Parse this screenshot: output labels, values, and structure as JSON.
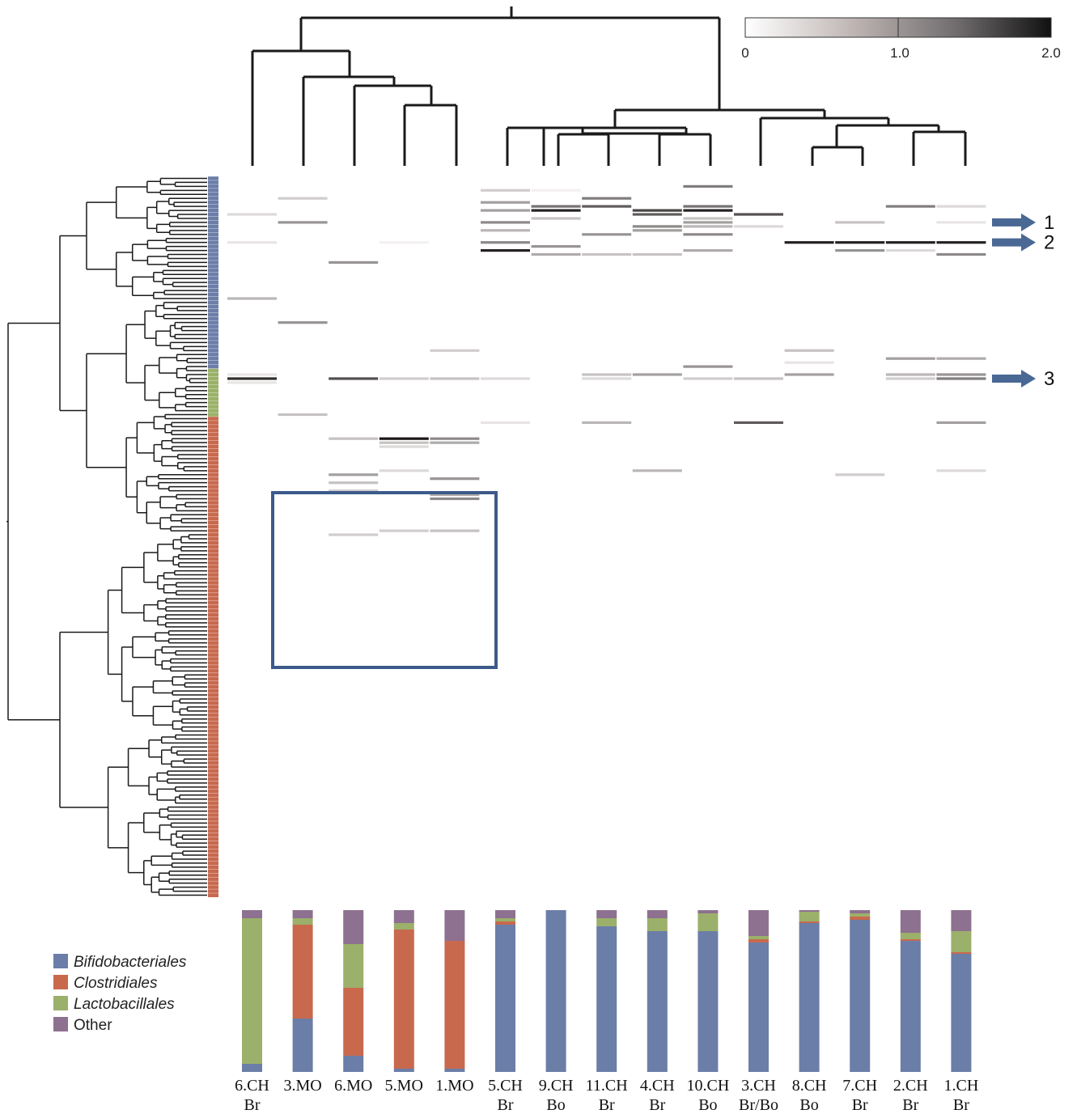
{
  "chart_data": [
    {
      "type": "heatmap",
      "samples": [
        "6.CH Br",
        "3.MO",
        "6.MO",
        "5.MO",
        "1.MO",
        "5.CH Br",
        "9.CH Bo",
        "11.CH Br",
        "4.CH Br",
        "10.CH Bo",
        "3.CH Br/Bo",
        "8.CH Bo",
        "7.CH Br",
        "2.CH Br",
        "1.CH Br"
      ],
      "sample_lines": [
        [
          "6.CH",
          "Br"
        ],
        [
          "3.MO"
        ],
        [
          "6.MO"
        ],
        [
          "5.MO"
        ],
        [
          "1.MO"
        ],
        [
          "5.CH",
          "Br"
        ],
        [
          "9.CH",
          "Bo"
        ],
        [
          "11.CH",
          "Br"
        ],
        [
          "4.CH",
          "Br"
        ],
        [
          "10.CH",
          "Bo"
        ],
        [
          "3.CH",
          "Br/Bo"
        ],
        [
          "8.CH",
          "Bo"
        ],
        [
          "7.CH",
          "Br"
        ],
        [
          "2.CH",
          "Br"
        ],
        [
          "1.CH",
          "Br"
        ]
      ],
      "color_scale": {
        "min": 0,
        "max": 2.0,
        "ticks": [
          "0",
          "1.0",
          "2.0"
        ],
        "low_color": "#ffffff",
        "high_color": "#1a1a1a"
      },
      "row_count": 180,
      "cells": [
        [
          1,
          5,
          0.4
        ],
        [
          1,
          11,
          0.9
        ],
        [
          1,
          59,
          0.5
        ],
        [
          1,
          36,
          0.9
        ],
        [
          0,
          9,
          0.3
        ],
        [
          0,
          16,
          0.2
        ],
        [
          0,
          30,
          0.6
        ],
        [
          0,
          49,
          0.2
        ],
        [
          0,
          50,
          1.8
        ],
        [
          0,
          51,
          0.2
        ],
        [
          2,
          21,
          0.9
        ],
        [
          2,
          50,
          1.5
        ],
        [
          2,
          78,
          0.4
        ],
        [
          2,
          74,
          0.8
        ],
        [
          2,
          76,
          0.5
        ],
        [
          2,
          89,
          0.4
        ],
        [
          2,
          65,
          0.5
        ],
        [
          3,
          16,
          0.1
        ],
        [
          3,
          50,
          0.4
        ],
        [
          3,
          65,
          2.0
        ],
        [
          3,
          66,
          0.5
        ],
        [
          3,
          67,
          0.3
        ],
        [
          3,
          73,
          0.3
        ],
        [
          3,
          88,
          0.4
        ],
        [
          4,
          43,
          0.4
        ],
        [
          4,
          50,
          0.5
        ],
        [
          4,
          66,
          0.7
        ],
        [
          4,
          75,
          0.9
        ],
        [
          4,
          80,
          1.0
        ],
        [
          4,
          65,
          1.0
        ],
        [
          4,
          79,
          0.7
        ],
        [
          4,
          88,
          0.5
        ],
        [
          5,
          3,
          0.4
        ],
        [
          5,
          6,
          0.8
        ],
        [
          5,
          11,
          1.0
        ],
        [
          5,
          18,
          1.9
        ],
        [
          5,
          8,
          0.8
        ],
        [
          5,
          13,
          0.6
        ],
        [
          5,
          16,
          1.0
        ],
        [
          5,
          50,
          0.3
        ],
        [
          5,
          61,
          0.2
        ],
        [
          6,
          3,
          0.1
        ],
        [
          6,
          7,
          1.2
        ],
        [
          6,
          10,
          0.5
        ],
        [
          6,
          17,
          0.9
        ],
        [
          6,
          19,
          0.7
        ],
        [
          6,
          8,
          1.9
        ],
        [
          7,
          5,
          1.1
        ],
        [
          7,
          7,
          1.4
        ],
        [
          7,
          14,
          0.9
        ],
        [
          7,
          19,
          0.5
        ],
        [
          7,
          49,
          0.5
        ],
        [
          7,
          50,
          0.3
        ],
        [
          7,
          61,
          0.6
        ],
        [
          8,
          8,
          1.6
        ],
        [
          8,
          9,
          1.4
        ],
        [
          8,
          12,
          1.0
        ],
        [
          8,
          13,
          0.8
        ],
        [
          8,
          19,
          0.5
        ],
        [
          8,
          49,
          0.8
        ],
        [
          8,
          73,
          0.6
        ],
        [
          9,
          2,
          1.1
        ],
        [
          9,
          7,
          1.2
        ],
        [
          9,
          8,
          1.9
        ],
        [
          9,
          11,
          0.8
        ],
        [
          9,
          14,
          1.0
        ],
        [
          9,
          18,
          0.7
        ],
        [
          9,
          47,
          0.9
        ],
        [
          9,
          50,
          0.4
        ],
        [
          9,
          10,
          0.5
        ],
        [
          9,
          12,
          0.6
        ],
        [
          10,
          9,
          1.5
        ],
        [
          10,
          12,
          0.3
        ],
        [
          10,
          50,
          0.5
        ],
        [
          10,
          61,
          1.4
        ],
        [
          11,
          16,
          1.9
        ],
        [
          11,
          43,
          0.5
        ],
        [
          11,
          49,
          0.8
        ],
        [
          11,
          46,
          0.2
        ],
        [
          12,
          11,
          0.5
        ],
        [
          12,
          16,
          1.9
        ],
        [
          12,
          18,
          0.9
        ],
        [
          12,
          74,
          0.4
        ],
        [
          13,
          7,
          1.1
        ],
        [
          13,
          16,
          1.9
        ],
        [
          13,
          18,
          0.3
        ],
        [
          13,
          45,
          0.8
        ],
        [
          13,
          49,
          0.6
        ],
        [
          13,
          50,
          0.4
        ],
        [
          14,
          7,
          0.3
        ],
        [
          14,
          11,
          0.2
        ],
        [
          14,
          16,
          1.9
        ],
        [
          14,
          19,
          1.0
        ],
        [
          14,
          45,
          0.7
        ],
        [
          14,
          49,
          0.9
        ],
        [
          14,
          50,
          1.1
        ],
        [
          14,
          61,
          0.8
        ],
        [
          14,
          73,
          0.3
        ]
      ]
    },
    {
      "type": "bar",
      "stacked": true,
      "categories": [
        "6.CH Br",
        "3.MO",
        "6.MO",
        "5.MO",
        "1.MO",
        "5.CH Br",
        "9.CH Bo",
        "11.CH Br",
        "4.CH Br",
        "10.CH Bo",
        "3.CH Br/Bo",
        "8.CH Bo",
        "7.CH Br",
        "2.CH Br",
        "1.CH Br"
      ],
      "ylim": [
        0,
        100
      ],
      "series": [
        {
          "name": "Bifidobacteriales",
          "color": "#6b7ea8",
          "values": [
            5,
            33,
            10,
            2,
            2,
            91,
            100,
            90,
            87,
            87,
            80,
            92,
            94,
            81,
            73
          ]
        },
        {
          "name": "Clostridiales",
          "color": "#c8694e",
          "values": [
            0,
            58,
            42,
            86,
            79,
            2,
            0,
            0,
            0,
            0,
            2,
            1,
            2,
            1,
            1
          ]
        },
        {
          "name": "Lactobacillales",
          "color": "#9bb06a",
          "values": [
            90,
            4,
            27,
            4,
            0,
            2,
            0,
            5,
            8,
            11,
            2,
            6,
            2,
            4,
            13
          ]
        },
        {
          "name": "Other",
          "color": "#8e7190",
          "values": [
            5,
            5,
            21,
            8,
            19,
            5,
            0,
            5,
            5,
            2,
            16,
            1,
            2,
            14,
            13
          ]
        }
      ]
    }
  ],
  "legend": {
    "items": [
      {
        "label": "Bifidobacteriales",
        "color": "#6b7ea8"
      },
      {
        "label": "Clostridiales",
        "color": "#c8694e"
      },
      {
        "label": "Lactobacillales",
        "color": "#9bb06a"
      },
      {
        "label": "Other",
        "color": "#8e7190"
      }
    ]
  },
  "arrows": [
    {
      "label": "1",
      "row": 11
    },
    {
      "label": "2",
      "row": 16
    },
    {
      "label": "3",
      "row": 50
    }
  ],
  "taxa_groups": [
    {
      "name": "Bifidobacteriales",
      "color": "#6b7ea8",
      "from_row": 0,
      "to_row": 47
    },
    {
      "name": "Lactobacillales",
      "color": "#9bb06a",
      "from_row": 48,
      "to_row": 59
    },
    {
      "name": "Clostridiales",
      "color": "#c8694e",
      "from_row": 60,
      "to_row": 179
    }
  ],
  "colors": {
    "dendrogram": "#1a1a1a",
    "highlight_box": "#3c5a8a",
    "arrow": "#4a6894"
  }
}
